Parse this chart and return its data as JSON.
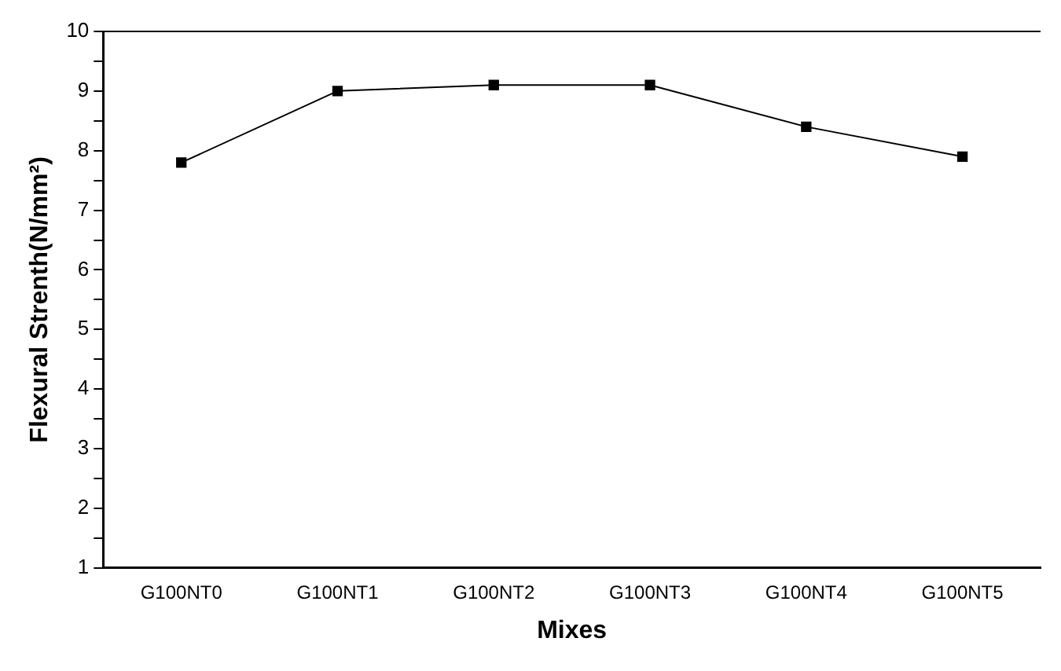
{
  "chart_data": {
    "type": "line",
    "xlabel": "Mixes",
    "ylabel": "Flexural Strenth(N/mm²)",
    "categories": [
      "G100NT0",
      "G100NT1",
      "G100NT2",
      "G100NT3",
      "G100NT4",
      "G100NT5"
    ],
    "series": [
      {
        "color": "#000000",
        "values": [
          7.8,
          9.0,
          9.1,
          9.1,
          8.4,
          7.9
        ]
      }
    ],
    "ylim": [
      1,
      10
    ],
    "yticks": [
      1,
      {
        "value": 1.5,
        "label": null
      },
      2,
      {
        "value": 2.5,
        "label": null
      },
      3,
      {
        "value": 3.5,
        "label": null
      },
      4,
      {
        "value": 4.5,
        "label": null
      },
      5,
      {
        "value": 5.5,
        "label": null
      },
      6,
      {
        "value": 6.5,
        "label": null
      },
      7,
      {
        "value": 7.5,
        "label": null
      },
      8,
      {
        "value": 8.5,
        "label": null
      },
      9,
      {
        "value": 9.5,
        "label": null
      },
      10
    ],
    "grid": false,
    "legend": false,
    "marker": "square",
    "line_style": "solid"
  }
}
